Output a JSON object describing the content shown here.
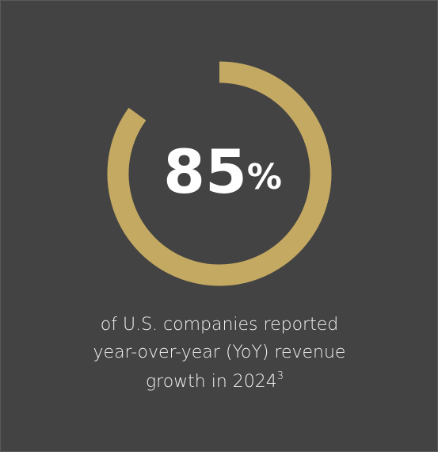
{
  "chart_data": {
    "type": "donut",
    "values": [
      85
    ],
    "value_labels": [
      "85%"
    ],
    "ylim": [
      0,
      100
    ],
    "color": "#c4a962",
    "caption": [
      "of U.S. companies reported",
      "year-over-year (YoY) revenue",
      "growth in 2024"
    ],
    "footnote": "3"
  }
}
